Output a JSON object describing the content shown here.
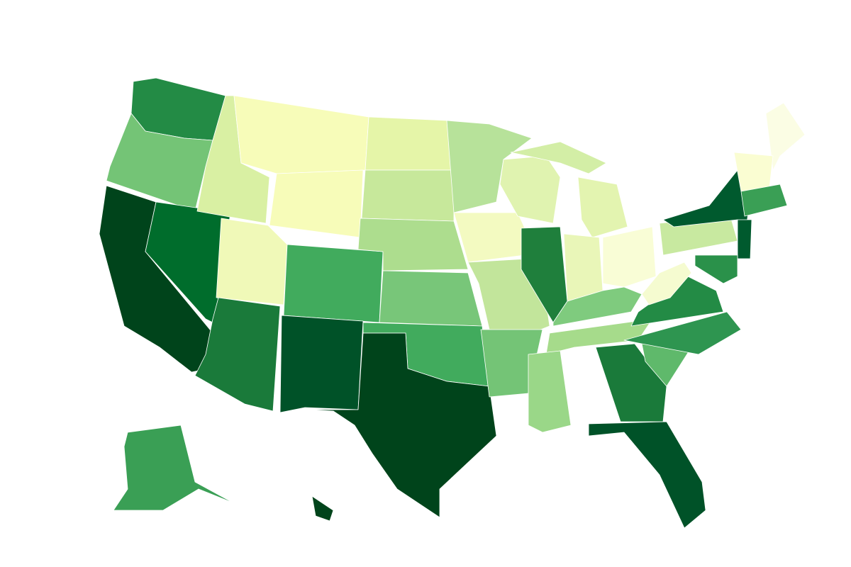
{
  "map": {
    "fills": [
      "#238b45",
      "#74c476",
      "#00441b",
      "#006d2c",
      "#d9f0a3",
      "#f7fcb9",
      "#f7fcb9",
      "#f0f9b8",
      "#1a7a3a",
      "#41ab5d",
      "#005228",
      "#e5f5a8",
      "#c7e89b",
      "#addd8e",
      "#78c679",
      "#41ab5d",
      "#00441b",
      "#b7e29a",
      "#f3fac1",
      "#c2e59b",
      "#74c476",
      "#e0f3b0",
      "#1f7f3c",
      "#e3f4b0",
      "#d3eea6",
      "#e9f6b8",
      "#f9fdd6",
      "#7fcb7e",
      "#a6db8b",
      "#9ad788",
      "#1a7a3a",
      "#005228",
      "#5fb96b",
      "#2e9550",
      "#238b45",
      "#fbfde4",
      "#c8e9a0",
      "#005a2e",
      "#fafdd2",
      "#f5fbd0",
      "#3a9f55",
      "#005a2e",
      "#2a914a",
      "#3a9f55",
      "#00441b"
    ]
  }
}
